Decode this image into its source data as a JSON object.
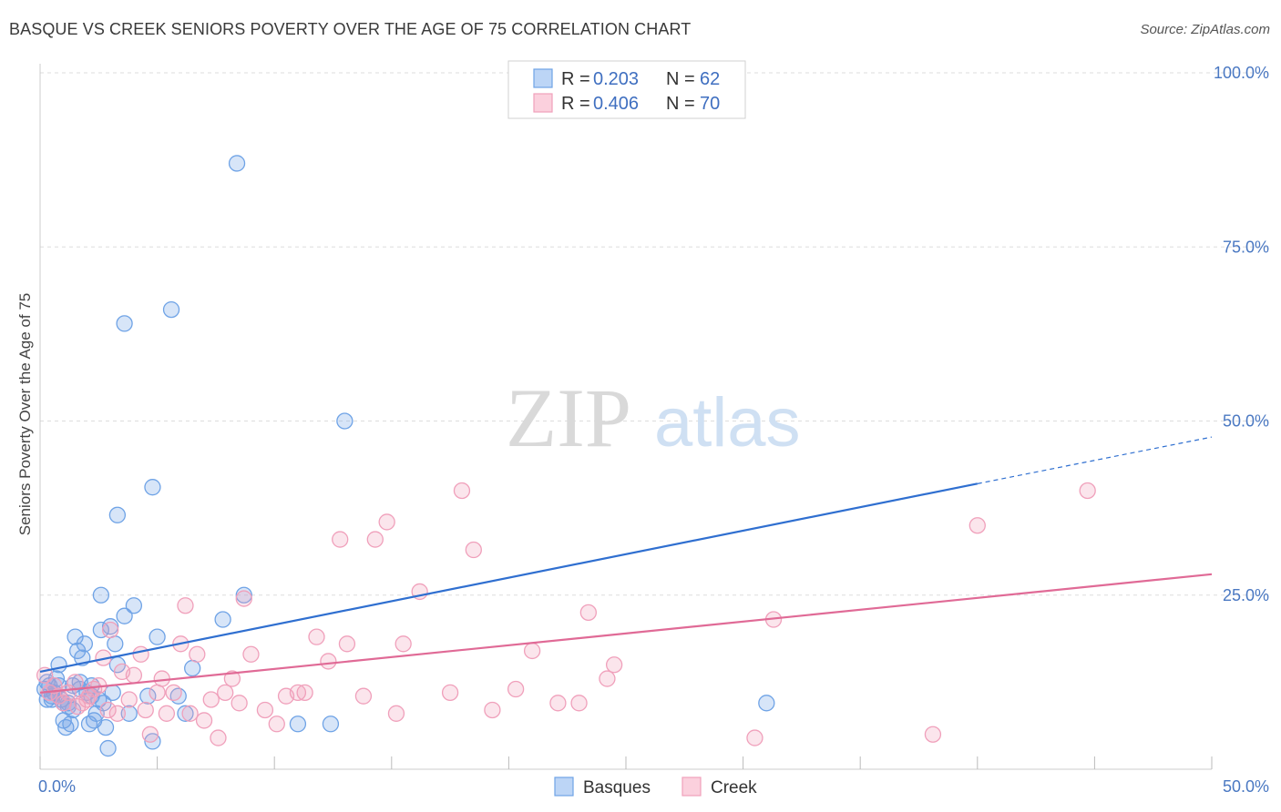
{
  "header": {
    "title": "BASQUE VS CREEK SENIORS POVERTY OVER THE AGE OF 75 CORRELATION CHART",
    "source": "Source: ZipAtlas.com"
  },
  "watermark": {
    "zip": "ZIP",
    "atlas": "atlas"
  },
  "colors": {
    "basques": "#6fa3e6",
    "basques_line": "#2f6fd0",
    "creek": "#f0a0bb",
    "creek_line": "#e06a96",
    "grid": "#dddddd",
    "tick": "#4a78c2"
  },
  "chart_data": {
    "type": "scatter",
    "title": "BASQUE VS CREEK SENIORS POVERTY OVER THE AGE OF 75 CORRELATION CHART",
    "xlabel": "",
    "ylabel": "Seniors Poverty Over the Age of 75",
    "xlim": [
      0,
      50
    ],
    "ylim": [
      0,
      100
    ],
    "x_tick_labels": [
      {
        "value": 0,
        "label": "0.0%"
      },
      {
        "value": 50,
        "label": "50.0%"
      }
    ],
    "y_tick_labels": [
      {
        "value": 25,
        "label": "25.0%"
      },
      {
        "value": 50,
        "label": "50.0%"
      },
      {
        "value": 75,
        "label": "75.0%"
      },
      {
        "value": 100,
        "label": "100.0%"
      }
    ],
    "legend": {
      "r_label": "R =",
      "n_label": "N =",
      "entries": [
        {
          "name": "Basques",
          "r": "0.203",
          "n": "62"
        },
        {
          "name": "Creek",
          "r": "0.406",
          "n": "70"
        }
      ]
    },
    "series": [
      {
        "name": "Basques",
        "trend": {
          "x0": 0,
          "y0": 14.0,
          "x1": 40,
          "y1": 41.0,
          "dash_to_x": 50,
          "dash_to_y": 47.7
        },
        "points": [
          [
            0.2,
            11.5
          ],
          [
            0.3,
            10.0
          ],
          [
            0.4,
            12.0
          ],
          [
            0.5,
            10.5
          ],
          [
            0.6,
            11.0
          ],
          [
            0.7,
            13.0
          ],
          [
            0.8,
            15.0
          ],
          [
            0.9,
            10.0
          ],
          [
            1.0,
            9.5
          ],
          [
            1.0,
            7.0
          ],
          [
            1.1,
            6.0
          ],
          [
            1.2,
            9.0
          ],
          [
            1.3,
            6.5
          ],
          [
            1.4,
            12.0
          ],
          [
            1.5,
            19.0
          ],
          [
            1.6,
            17.0
          ],
          [
            1.7,
            12.5
          ],
          [
            1.8,
            16.0
          ],
          [
            1.9,
            18.0
          ],
          [
            2.0,
            11.0
          ],
          [
            2.1,
            6.5
          ],
          [
            2.2,
            12.0
          ],
          [
            2.3,
            7.0
          ],
          [
            2.4,
            8.0
          ],
          [
            2.5,
            10.0
          ],
          [
            2.6,
            20.0
          ],
          [
            2.6,
            25.0
          ],
          [
            2.7,
            9.5
          ],
          [
            2.8,
            6.0
          ],
          [
            2.9,
            3.0
          ],
          [
            3.0,
            20.5
          ],
          [
            3.1,
            11.0
          ],
          [
            3.2,
            18.0
          ],
          [
            3.3,
            15.0
          ],
          [
            3.3,
            36.5
          ],
          [
            3.6,
            64.0
          ],
          [
            3.6,
            22.0
          ],
          [
            3.8,
            8.0
          ],
          [
            4.0,
            23.5
          ],
          [
            4.6,
            10.5
          ],
          [
            4.8,
            40.5
          ],
          [
            4.8,
            4.0
          ],
          [
            5.0,
            19.0
          ],
          [
            5.6,
            66.0
          ],
          [
            5.9,
            10.5
          ],
          [
            6.2,
            8.0
          ],
          [
            6.5,
            14.5
          ],
          [
            7.8,
            21.5
          ],
          [
            8.4,
            87.0
          ],
          [
            8.7,
            25.0
          ],
          [
            11.0,
            6.5
          ],
          [
            12.4,
            6.5
          ],
          [
            13.0,
            50.0
          ],
          [
            31.0,
            9.5
          ],
          [
            0.5,
            10.0
          ],
          [
            1.2,
            9.5
          ],
          [
            0.8,
            12.0
          ],
          [
            1.7,
            11.5
          ],
          [
            2.2,
            10.5
          ],
          [
            1.4,
            8.5
          ],
          [
            0.3,
            12.5
          ],
          [
            0.6,
            11.0
          ]
        ]
      },
      {
        "name": "Creek",
        "trend": {
          "x0": 0,
          "y0": 11.0,
          "x1": 50,
          "y1": 28.0
        },
        "points": [
          [
            0.2,
            13.5
          ],
          [
            0.4,
            11.0
          ],
          [
            0.6,
            12.0
          ],
          [
            0.8,
            10.5
          ],
          [
            1.0,
            9.5
          ],
          [
            1.2,
            11.0
          ],
          [
            1.5,
            12.5
          ],
          [
            1.8,
            9.5
          ],
          [
            2.0,
            10.0
          ],
          [
            2.3,
            11.5
          ],
          [
            2.5,
            12.0
          ],
          [
            2.7,
            16.0
          ],
          [
            2.9,
            8.5
          ],
          [
            3.0,
            20.0
          ],
          [
            3.3,
            8.0
          ],
          [
            3.5,
            14.0
          ],
          [
            3.8,
            10.0
          ],
          [
            4.0,
            13.5
          ],
          [
            4.3,
            16.5
          ],
          [
            4.5,
            8.5
          ],
          [
            4.7,
            5.0
          ],
          [
            5.0,
            11.0
          ],
          [
            5.2,
            13.0
          ],
          [
            5.4,
            8.0
          ],
          [
            5.7,
            11.0
          ],
          [
            6.0,
            18.0
          ],
          [
            6.2,
            23.5
          ],
          [
            6.4,
            8.0
          ],
          [
            6.7,
            16.5
          ],
          [
            7.0,
            7.0
          ],
          [
            7.3,
            10.0
          ],
          [
            7.6,
            4.5
          ],
          [
            7.9,
            11.0
          ],
          [
            8.2,
            13.0
          ],
          [
            8.5,
            9.5
          ],
          [
            8.7,
            24.5
          ],
          [
            9.0,
            16.5
          ],
          [
            9.6,
            8.5
          ],
          [
            10.1,
            6.5
          ],
          [
            10.5,
            10.5
          ],
          [
            11.0,
            11.0
          ],
          [
            11.3,
            11.0
          ],
          [
            11.8,
            19.0
          ],
          [
            12.3,
            15.5
          ],
          [
            12.8,
            33.0
          ],
          [
            13.1,
            18.0
          ],
          [
            13.8,
            10.5
          ],
          [
            14.3,
            33.0
          ],
          [
            14.8,
            35.5
          ],
          [
            15.2,
            8.0
          ],
          [
            15.5,
            18.0
          ],
          [
            16.2,
            25.5
          ],
          [
            17.5,
            11.0
          ],
          [
            18.0,
            40.0
          ],
          [
            18.5,
            31.5
          ],
          [
            19.3,
            8.5
          ],
          [
            20.3,
            11.5
          ],
          [
            21.0,
            17.0
          ],
          [
            22.1,
            9.5
          ],
          [
            23.0,
            9.5
          ],
          [
            23.4,
            22.5
          ],
          [
            24.2,
            13.0
          ],
          [
            24.5,
            15.0
          ],
          [
            30.5,
            4.5
          ],
          [
            31.3,
            21.5
          ],
          [
            38.1,
            5.0
          ],
          [
            40.0,
            35.0
          ],
          [
            44.7,
            40.0
          ],
          [
            2.1,
            10.5
          ],
          [
            1.6,
            9.0
          ]
        ]
      }
    ]
  }
}
